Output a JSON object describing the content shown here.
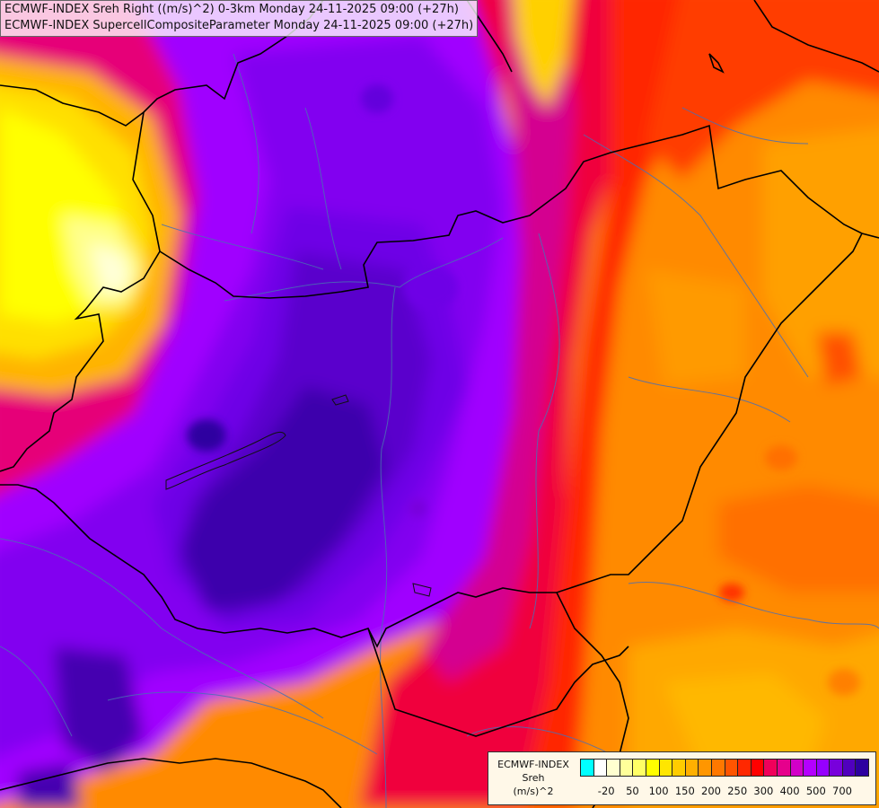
{
  "map": {
    "title_line_1": "ECMWF-INDEX Sreh Right ((m/s)^2) 0-3km Monday 24-11-2025 09:00 (+27h)",
    "title_line_2": "ECMWF-INDEX SupercellCompositeParameter Monday 24-11-2025 09:00 (+27h)"
  },
  "legend": {
    "source": "ECMWF-INDEX",
    "variable": "Sreh",
    "unit": "(m/s)^2",
    "colors": [
      "#00ffff",
      "#ffffff",
      "#ffffd0",
      "#ffff9a",
      "#ffff66",
      "#ffff00",
      "#ffe600",
      "#ffcc00",
      "#ffb000",
      "#ff9600",
      "#ff7800",
      "#ff5500",
      "#ff2800",
      "#ff0000",
      "#f0005a",
      "#e6008c",
      "#d200c8",
      "#b400ff",
      "#9600ff",
      "#7800dc",
      "#5000be",
      "#2d00a0"
    ],
    "ticks": [
      {
        "label": "-20",
        "index": 1
      },
      {
        "label": "50",
        "index": 3
      },
      {
        "label": "100",
        "index": 5
      },
      {
        "label": "150",
        "index": 7
      },
      {
        "label": "200",
        "index": 9
      },
      {
        "label": "250",
        "index": 11
      },
      {
        "label": "300",
        "index": 13
      },
      {
        "label": "400",
        "index": 15
      },
      {
        "label": "500",
        "index": 17
      },
      {
        "label": "700",
        "index": 19
      }
    ]
  }
}
